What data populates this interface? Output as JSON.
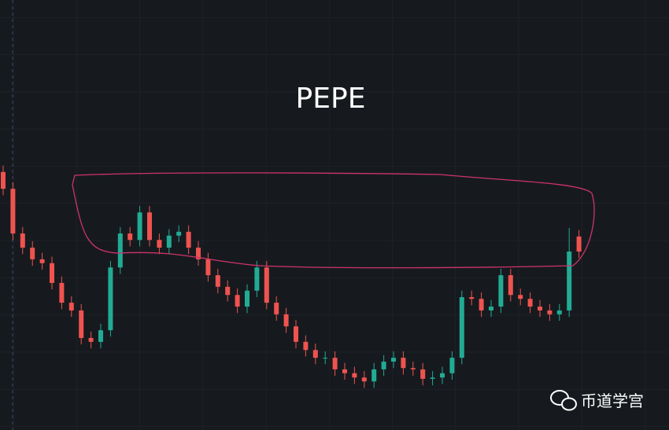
{
  "chart_data": {
    "type": "candlestick",
    "title": "PEPE",
    "watermark": "币道学宫",
    "up_color": "#22ab94",
    "down_color": "#ef5350",
    "ylim": [
      0,
      100
    ],
    "open": [
      60.0,
      56.1,
      45.7,
      42.4,
      39.7,
      38.8,
      34.2,
      29.6,
      27.8,
      21.4,
      20.5,
      23.2,
      37.8,
      45.7,
      44.2,
      50.6,
      44.2,
      42.4,
      45.2,
      46.1,
      42.4,
      39.7,
      36.0,
      33.3,
      31.4,
      28.7,
      32.4,
      37.8,
      29.6,
      26.9,
      24.1,
      20.5,
      18.6,
      16.8,
      16.8,
      14.1,
      13.2,
      12.2,
      11.3,
      14.1,
      15.9,
      16.8,
      14.4,
      14.1,
      11.9,
      12.2,
      13.2,
      16.8,
      30.9,
      30.5,
      27.8,
      28.7,
      36.0,
      31.4,
      30.5,
      28.7,
      27.8,
      26.9,
      27.8,
      45.0
    ],
    "high": [
      61.5,
      57.6,
      47.2,
      43.9,
      41.2,
      40.3,
      35.7,
      31.1,
      29.3,
      22.9,
      24.7,
      39.3,
      47.2,
      47.2,
      52.1,
      52.1,
      45.7,
      46.7,
      47.6,
      47.6,
      43.9,
      41.2,
      37.5,
      34.8,
      32.9,
      33.9,
      39.3,
      39.3,
      31.1,
      28.4,
      25.6,
      22.0,
      20.1,
      18.3,
      18.3,
      15.6,
      14.7,
      13.7,
      15.6,
      17.4,
      18.3,
      18.3,
      15.9,
      15.6,
      13.7,
      14.7,
      18.3,
      32.4,
      32.4,
      32.0,
      30.2,
      37.5,
      37.5,
      32.9,
      32.0,
      30.2,
      29.3,
      29.3,
      47.0,
      46.5
    ],
    "low": [
      54.6,
      44.2,
      40.9,
      38.2,
      37.3,
      32.7,
      28.1,
      26.3,
      19.9,
      19.0,
      19.0,
      21.7,
      36.3,
      42.7,
      42.7,
      42.7,
      40.9,
      40.9,
      43.7,
      40.9,
      38.2,
      34.5,
      31.8,
      29.9,
      27.2,
      27.2,
      30.9,
      28.1,
      25.4,
      22.6,
      19.0,
      17.1,
      15.3,
      15.3,
      12.6,
      11.7,
      10.7,
      9.8,
      9.8,
      12.6,
      14.4,
      12.9,
      12.6,
      10.4,
      10.4,
      10.7,
      11.7,
      15.3,
      29.0,
      26.3,
      26.3,
      27.2,
      29.9,
      29.0,
      27.2,
      26.3,
      25.4,
      25.4,
      26.3,
      40.0
    ],
    "close": [
      56.1,
      45.7,
      42.4,
      39.7,
      38.8,
      34.2,
      29.6,
      27.8,
      21.4,
      20.5,
      23.2,
      37.8,
      45.7,
      44.2,
      50.6,
      44.2,
      42.4,
      45.2,
      46.1,
      42.4,
      39.7,
      36.0,
      33.3,
      31.4,
      28.7,
      32.4,
      37.8,
      29.6,
      26.9,
      24.1,
      20.5,
      18.6,
      16.8,
      16.8,
      14.1,
      13.2,
      12.2,
      11.3,
      14.1,
      15.9,
      16.8,
      14.4,
      14.1,
      11.9,
      12.2,
      13.2,
      16.8,
      30.9,
      30.5,
      27.8,
      28.7,
      36.0,
      31.4,
      30.5,
      28.7,
      27.8,
      26.9,
      27.8,
      41.5,
      41.5
    ]
  }
}
